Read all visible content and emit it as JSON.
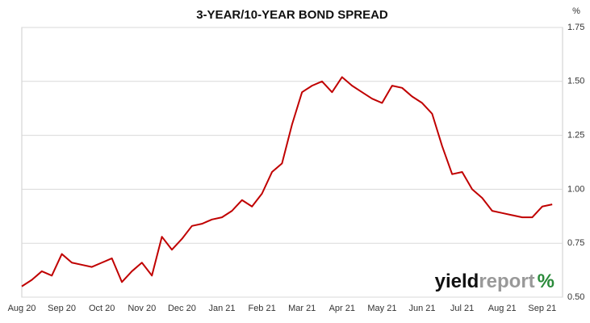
{
  "chart_data": {
    "type": "line",
    "title": "3-YEAR/10-YEAR BOND SPREAD",
    "unit": "%",
    "logo": {
      "first": "yield",
      "second": "report",
      "symbol": "%"
    },
    "categories": [
      "Aug 20",
      null,
      null,
      null,
      "Sep 20",
      null,
      null,
      null,
      "Oct 20",
      null,
      null,
      null,
      "Nov 20",
      null,
      null,
      null,
      "Dec 20",
      null,
      null,
      null,
      "Jan 21",
      null,
      null,
      null,
      "Feb 21",
      null,
      null,
      null,
      "Mar 21",
      null,
      null,
      null,
      "Apr 21",
      null,
      null,
      null,
      "May 21",
      null,
      null,
      null,
      "Jun 21",
      null,
      null,
      null,
      "Jul 21",
      null,
      null,
      null,
      "Aug 21",
      null,
      null,
      null,
      "Sep 21",
      null
    ],
    "series": [
      {
        "name": "3-year/10-year spread",
        "color": "#c00000",
        "values": [
          0.55,
          0.58,
          0.62,
          0.6,
          0.7,
          0.66,
          0.65,
          0.64,
          0.66,
          0.68,
          0.57,
          0.62,
          0.66,
          0.6,
          0.78,
          0.72,
          0.77,
          0.83,
          0.84,
          0.86,
          0.87,
          0.9,
          0.95,
          0.92,
          0.98,
          1.08,
          1.12,
          1.3,
          1.45,
          1.48,
          1.5,
          1.45,
          1.52,
          1.48,
          1.45,
          1.42,
          1.4,
          1.48,
          1.47,
          1.43,
          1.4,
          1.35,
          1.2,
          1.07,
          1.08,
          1.0,
          0.96,
          0.9,
          0.89,
          0.88,
          0.87,
          0.87,
          0.92,
          0.93
        ]
      }
    ],
    "ylim": [
      0.5,
      1.75
    ],
    "yticks": [
      {
        "value": 0.5,
        "label": "0.50"
      },
      {
        "value": 0.75,
        "label": "0.75"
      },
      {
        "value": 1,
        "label": "1.00"
      },
      {
        "value": 1.25,
        "label": "1.25"
      },
      {
        "value": 1.5,
        "label": "1.50"
      },
      {
        "value": 1.75,
        "label": "1.75"
      }
    ],
    "grid": true
  }
}
